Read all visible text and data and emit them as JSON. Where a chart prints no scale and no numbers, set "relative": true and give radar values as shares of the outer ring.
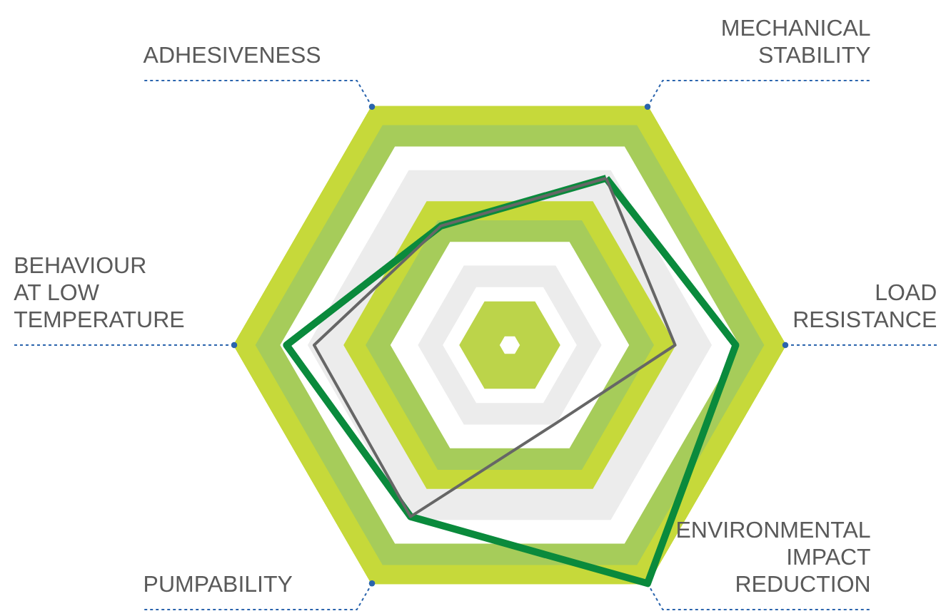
{
  "chart_data": {
    "type": "radar",
    "relative": true,
    "grid": true,
    "marker": "none",
    "line_style": "solid",
    "categories": [
      "MECHANICAL\nSTABILITY",
      "LOAD\nRESISTANCE",
      "ENVIRONMENTAL\nIMPACT\nREDUCTION",
      "PUMPABILITY",
      "BEHAVIOUR\nAT LOW\nTEMPERATURE",
      "ADHESIVENESS"
    ],
    "series": [
      {
        "color": "#0a8a3c",
        "values": [
          0.7,
          0.82,
          1.0,
          0.72,
          0.81,
          0.5
        ]
      },
      {
        "color": "#666666",
        "values": [
          0.7,
          0.6,
          0.33,
          0.72,
          0.71,
          0.5
        ]
      }
    ]
  }
}
